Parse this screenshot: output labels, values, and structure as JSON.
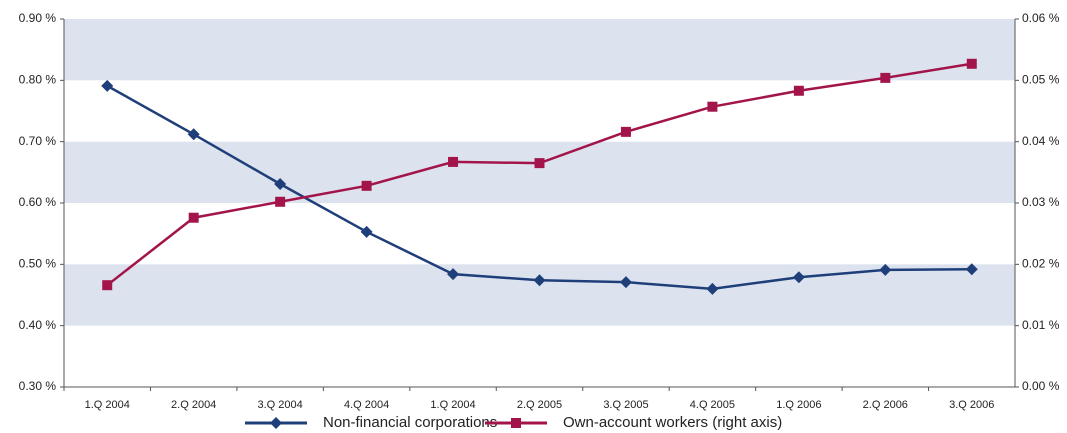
{
  "chart_data": {
    "type": "line",
    "categories": [
      "1.Q 2004",
      "2.Q 2004",
      "3.Q 2004",
      "4.Q 2004",
      "1.Q 2004",
      "2.Q 2005",
      "3.Q 2005",
      "4.Q 2005",
      "1.Q 2006",
      "2.Q 2006",
      "3.Q 2006"
    ],
    "series": [
      {
        "name": "Non-financial corporations",
        "color": "#1f3f7a",
        "values": [
          0.791,
          0.712,
          0.631,
          0.553,
          0.484,
          0.474,
          0.471,
          0.46,
          0.479,
          0.491,
          0.492
        ]
      },
      {
        "name": "Own-account workers (right axis)",
        "color": "#a3154a",
        "axis": "y2",
        "values": [
          0.0166,
          0.0276,
          0.0302,
          0.0328,
          0.0367,
          0.0365,
          0.0416,
          0.0457,
          0.0483,
          0.0504,
          0.0527
        ]
      }
    ],
    "ylim": [
      0.3,
      0.9
    ],
    "yticks": [
      {
        "value": 0.3,
        "label": "0.30 %"
      },
      {
        "value": 0.4,
        "label": "0.40 %"
      },
      {
        "value": 0.5,
        "label": "0.50 %"
      },
      {
        "value": 0.6,
        "label": "0.60 %"
      },
      {
        "value": 0.7,
        "label": "0.70 %"
      },
      {
        "value": 0.8,
        "label": "0.80 %"
      },
      {
        "value": 0.9,
        "label": "0.90 %"
      }
    ],
    "y2lim": [
      0,
      0.06
    ],
    "y2ticks": [
      {
        "value": 0,
        "label": "0.00 %"
      },
      {
        "value": 0.01,
        "label": "0.01 %"
      },
      {
        "value": 0.02,
        "label": "0.02 %"
      },
      {
        "value": 0.03,
        "label": "0.03 %"
      },
      {
        "value": 0.04,
        "label": "0.04 %"
      },
      {
        "value": 0.05,
        "label": "0.05 %"
      },
      {
        "value": 0.06,
        "label": "0.06 %"
      }
    ],
    "band_color": "#dde3ee"
  }
}
